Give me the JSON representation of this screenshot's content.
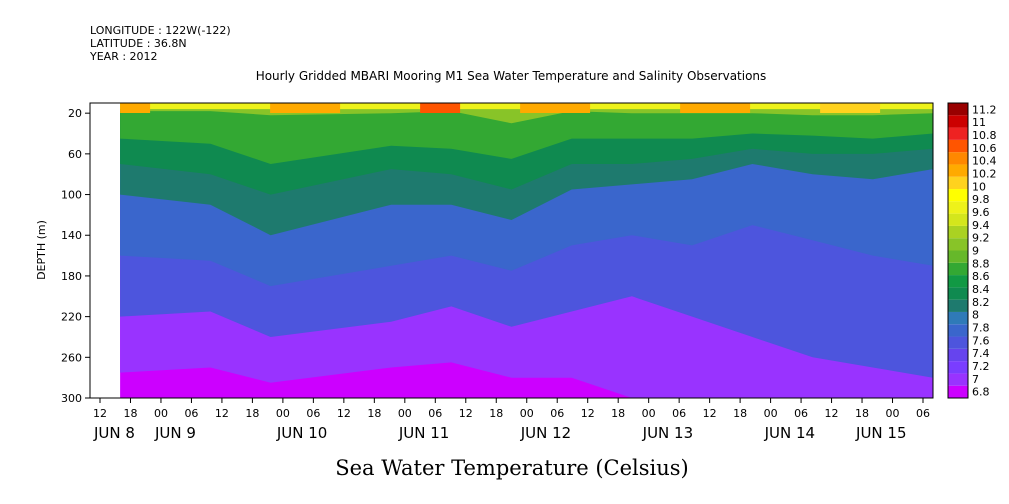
{
  "header": {
    "longitude": "LONGITUDE : 122W(-122)",
    "latitude": "LATITUDE : 36.8N",
    "year": "YEAR : 2012"
  },
  "chart_data": {
    "type": "heatmap",
    "title": "Hourly Gridded MBARI Mooring M1 Sea Water Temperature and Salinity Observations",
    "colorbar_title": "Sea Water Temperature (Celsius)",
    "ylabel": "DEPTH (m)",
    "xlabel": "",
    "y_ticks": [
      20,
      60,
      100,
      140,
      180,
      220,
      260,
      300
    ],
    "ylim": [
      10,
      300
    ],
    "y_reversed": true,
    "x_hour_ticks": [
      "12",
      "18",
      "00",
      "06",
      "12",
      "18",
      "00",
      "06",
      "12",
      "18",
      "00",
      "06",
      "12",
      "18",
      "00",
      "06",
      "12",
      "18",
      "00",
      "06",
      "12",
      "18",
      "00",
      "06",
      "12",
      "18",
      "00",
      "06"
    ],
    "x_day_labels": [
      {
        "label": "JUN  8",
        "tick": 0
      },
      {
        "label": "JUN  9",
        "tick": 2
      },
      {
        "label": "JUN 10",
        "tick": 6
      },
      {
        "label": "JUN 11",
        "tick": 10
      },
      {
        "label": "JUN 12",
        "tick": 14
      },
      {
        "label": "JUN 13",
        "tick": 18
      },
      {
        "label": "JUN 14",
        "tick": 22
      },
      {
        "label": "JUN 15",
        "tick": 25
      }
    ],
    "xlim_hours": [
      -18,
      150
    ],
    "data_start_hour": -12,
    "colorbar_levels": [
      6.8,
      7,
      7.2,
      7.4,
      7.6,
      7.8,
      8,
      8.2,
      8.4,
      8.6,
      8.8,
      9,
      9.2,
      9.4,
      9.6,
      9.8,
      10,
      10.2,
      10.4,
      10.6,
      10.8,
      11,
      11.2
    ],
    "colorbar_colors": [
      "#cc00ff",
      "#9933ff",
      "#7a3dff",
      "#6644ee",
      "#4d55dd",
      "#3a66cc",
      "#2f7ab8",
      "#1e7a6e",
      "#0f8a50",
      "#119944",
      "#33a833",
      "#66b82a",
      "#88c428",
      "#aad222",
      "#d4e61c",
      "#eef21a",
      "#ffff00",
      "#ffd21e",
      "#ffaa00",
      "#ff8800",
      "#ff5500",
      "#ee2222",
      "#cc0000",
      "#990000"
    ],
    "depth_profile_hours": [
      -12,
      6,
      18,
      42,
      54,
      66,
      78,
      90,
      102,
      114,
      126,
      138,
      150
    ],
    "isotherm_depths": {
      "9.6": [
        18,
        18,
        22,
        20,
        18,
        30,
        18,
        20,
        20,
        20,
        22,
        22,
        20
      ],
      "9.0": [
        45,
        50,
        70,
        52,
        55,
        65,
        45,
        45,
        45,
        40,
        42,
        45,
        40
      ],
      "8.6": [
        70,
        80,
        100,
        75,
        80,
        95,
        70,
        70,
        65,
        55,
        60,
        60,
        55
      ],
      "8.2": [
        100,
        110,
        140,
        110,
        110,
        125,
        95,
        90,
        85,
        70,
        80,
        85,
        75
      ],
      "7.8": [
        160,
        165,
        190,
        170,
        160,
        175,
        150,
        140,
        150,
        130,
        145,
        160,
        170
      ],
      "7.4": [
        220,
        215,
        240,
        225,
        210,
        230,
        215,
        200,
        220,
        240,
        260,
        270,
        280
      ],
      "7.0": [
        275,
        270,
        285,
        270,
        265,
        280,
        280,
        300,
        300,
        300,
        300,
        300,
        300
      ]
    }
  }
}
